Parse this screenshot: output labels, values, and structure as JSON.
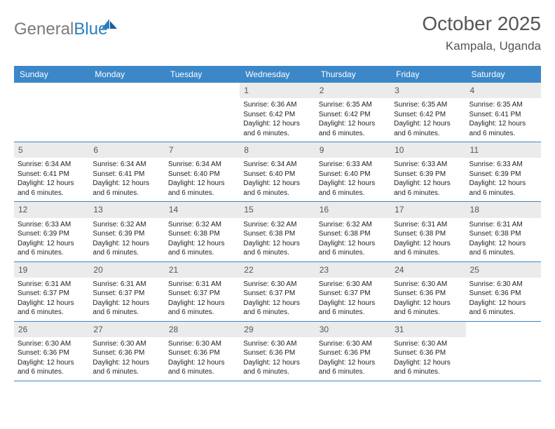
{
  "logo": {
    "text1": "General",
    "text2": "Blue"
  },
  "title": "October 2025",
  "location": "Kampala, Uganda",
  "colors": {
    "header_bar": "#3b87c8",
    "daynum_bg": "#ebebeb",
    "text_dark": "#222222",
    "text_gray": "#555555",
    "logo_gray": "#7a7a7a",
    "logo_blue": "#2a7fbf",
    "row_border": "#3b87c8",
    "background": "#ffffff"
  },
  "weekdays": [
    "Sunday",
    "Monday",
    "Tuesday",
    "Wednesday",
    "Thursday",
    "Friday",
    "Saturday"
  ],
  "weeks": [
    [
      {
        "empty": true
      },
      {
        "empty": true
      },
      {
        "empty": true
      },
      {
        "day": "1",
        "sunrise": "Sunrise: 6:36 AM",
        "sunset": "Sunset: 6:42 PM",
        "daylight1": "Daylight: 12 hours",
        "daylight2": "and 6 minutes."
      },
      {
        "day": "2",
        "sunrise": "Sunrise: 6:35 AM",
        "sunset": "Sunset: 6:42 PM",
        "daylight1": "Daylight: 12 hours",
        "daylight2": "and 6 minutes."
      },
      {
        "day": "3",
        "sunrise": "Sunrise: 6:35 AM",
        "sunset": "Sunset: 6:42 PM",
        "daylight1": "Daylight: 12 hours",
        "daylight2": "and 6 minutes."
      },
      {
        "day": "4",
        "sunrise": "Sunrise: 6:35 AM",
        "sunset": "Sunset: 6:41 PM",
        "daylight1": "Daylight: 12 hours",
        "daylight2": "and 6 minutes."
      }
    ],
    [
      {
        "day": "5",
        "sunrise": "Sunrise: 6:34 AM",
        "sunset": "Sunset: 6:41 PM",
        "daylight1": "Daylight: 12 hours",
        "daylight2": "and 6 minutes."
      },
      {
        "day": "6",
        "sunrise": "Sunrise: 6:34 AM",
        "sunset": "Sunset: 6:41 PM",
        "daylight1": "Daylight: 12 hours",
        "daylight2": "and 6 minutes."
      },
      {
        "day": "7",
        "sunrise": "Sunrise: 6:34 AM",
        "sunset": "Sunset: 6:40 PM",
        "daylight1": "Daylight: 12 hours",
        "daylight2": "and 6 minutes."
      },
      {
        "day": "8",
        "sunrise": "Sunrise: 6:34 AM",
        "sunset": "Sunset: 6:40 PM",
        "daylight1": "Daylight: 12 hours",
        "daylight2": "and 6 minutes."
      },
      {
        "day": "9",
        "sunrise": "Sunrise: 6:33 AM",
        "sunset": "Sunset: 6:40 PM",
        "daylight1": "Daylight: 12 hours",
        "daylight2": "and 6 minutes."
      },
      {
        "day": "10",
        "sunrise": "Sunrise: 6:33 AM",
        "sunset": "Sunset: 6:39 PM",
        "daylight1": "Daylight: 12 hours",
        "daylight2": "and 6 minutes."
      },
      {
        "day": "11",
        "sunrise": "Sunrise: 6:33 AM",
        "sunset": "Sunset: 6:39 PM",
        "daylight1": "Daylight: 12 hours",
        "daylight2": "and 6 minutes."
      }
    ],
    [
      {
        "day": "12",
        "sunrise": "Sunrise: 6:33 AM",
        "sunset": "Sunset: 6:39 PM",
        "daylight1": "Daylight: 12 hours",
        "daylight2": "and 6 minutes."
      },
      {
        "day": "13",
        "sunrise": "Sunrise: 6:32 AM",
        "sunset": "Sunset: 6:39 PM",
        "daylight1": "Daylight: 12 hours",
        "daylight2": "and 6 minutes."
      },
      {
        "day": "14",
        "sunrise": "Sunrise: 6:32 AM",
        "sunset": "Sunset: 6:38 PM",
        "daylight1": "Daylight: 12 hours",
        "daylight2": "and 6 minutes."
      },
      {
        "day": "15",
        "sunrise": "Sunrise: 6:32 AM",
        "sunset": "Sunset: 6:38 PM",
        "daylight1": "Daylight: 12 hours",
        "daylight2": "and 6 minutes."
      },
      {
        "day": "16",
        "sunrise": "Sunrise: 6:32 AM",
        "sunset": "Sunset: 6:38 PM",
        "daylight1": "Daylight: 12 hours",
        "daylight2": "and 6 minutes."
      },
      {
        "day": "17",
        "sunrise": "Sunrise: 6:31 AM",
        "sunset": "Sunset: 6:38 PM",
        "daylight1": "Daylight: 12 hours",
        "daylight2": "and 6 minutes."
      },
      {
        "day": "18",
        "sunrise": "Sunrise: 6:31 AM",
        "sunset": "Sunset: 6:38 PM",
        "daylight1": "Daylight: 12 hours",
        "daylight2": "and 6 minutes."
      }
    ],
    [
      {
        "day": "19",
        "sunrise": "Sunrise: 6:31 AM",
        "sunset": "Sunset: 6:37 PM",
        "daylight1": "Daylight: 12 hours",
        "daylight2": "and 6 minutes."
      },
      {
        "day": "20",
        "sunrise": "Sunrise: 6:31 AM",
        "sunset": "Sunset: 6:37 PM",
        "daylight1": "Daylight: 12 hours",
        "daylight2": "and 6 minutes."
      },
      {
        "day": "21",
        "sunrise": "Sunrise: 6:31 AM",
        "sunset": "Sunset: 6:37 PM",
        "daylight1": "Daylight: 12 hours",
        "daylight2": "and 6 minutes."
      },
      {
        "day": "22",
        "sunrise": "Sunrise: 6:30 AM",
        "sunset": "Sunset: 6:37 PM",
        "daylight1": "Daylight: 12 hours",
        "daylight2": "and 6 minutes."
      },
      {
        "day": "23",
        "sunrise": "Sunrise: 6:30 AM",
        "sunset": "Sunset: 6:37 PM",
        "daylight1": "Daylight: 12 hours",
        "daylight2": "and 6 minutes."
      },
      {
        "day": "24",
        "sunrise": "Sunrise: 6:30 AM",
        "sunset": "Sunset: 6:36 PM",
        "daylight1": "Daylight: 12 hours",
        "daylight2": "and 6 minutes."
      },
      {
        "day": "25",
        "sunrise": "Sunrise: 6:30 AM",
        "sunset": "Sunset: 6:36 PM",
        "daylight1": "Daylight: 12 hours",
        "daylight2": "and 6 minutes."
      }
    ],
    [
      {
        "day": "26",
        "sunrise": "Sunrise: 6:30 AM",
        "sunset": "Sunset: 6:36 PM",
        "daylight1": "Daylight: 12 hours",
        "daylight2": "and 6 minutes."
      },
      {
        "day": "27",
        "sunrise": "Sunrise: 6:30 AM",
        "sunset": "Sunset: 6:36 PM",
        "daylight1": "Daylight: 12 hours",
        "daylight2": "and 6 minutes."
      },
      {
        "day": "28",
        "sunrise": "Sunrise: 6:30 AM",
        "sunset": "Sunset: 6:36 PM",
        "daylight1": "Daylight: 12 hours",
        "daylight2": "and 6 minutes."
      },
      {
        "day": "29",
        "sunrise": "Sunrise: 6:30 AM",
        "sunset": "Sunset: 6:36 PM",
        "daylight1": "Daylight: 12 hours",
        "daylight2": "and 6 minutes."
      },
      {
        "day": "30",
        "sunrise": "Sunrise: 6:30 AM",
        "sunset": "Sunset: 6:36 PM",
        "daylight1": "Daylight: 12 hours",
        "daylight2": "and 6 minutes."
      },
      {
        "day": "31",
        "sunrise": "Sunrise: 6:30 AM",
        "sunset": "Sunset: 6:36 PM",
        "daylight1": "Daylight: 12 hours",
        "daylight2": "and 6 minutes."
      },
      {
        "empty": true
      }
    ]
  ]
}
